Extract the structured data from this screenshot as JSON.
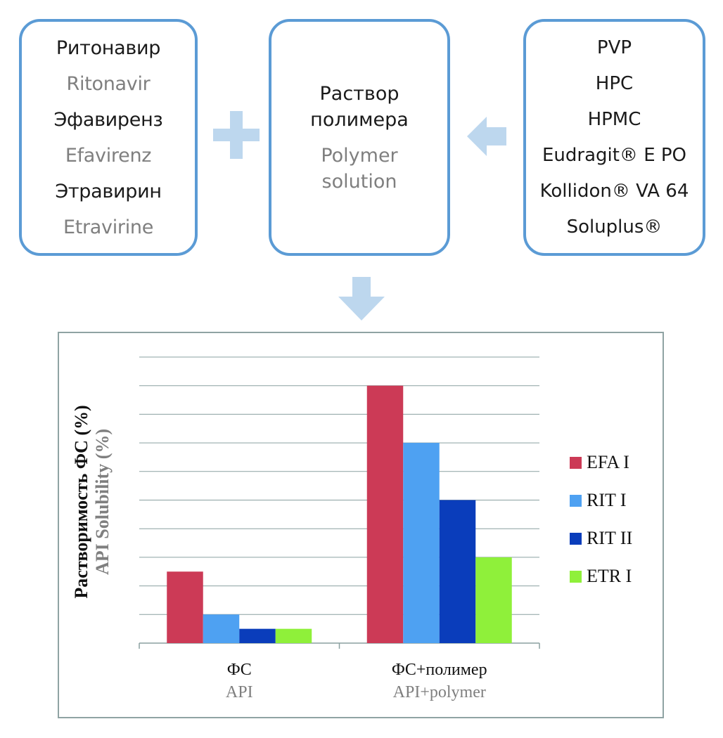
{
  "left_box": {
    "items": [
      {
        "ru": "Ритонавир",
        "en": "Ritonavir"
      },
      {
        "ru": "Эфавиренз",
        "en": "Efavirenz"
      },
      {
        "ru": "Этравирин",
        "en": "Etravirine"
      }
    ]
  },
  "middle_box": {
    "ru_line1": "Раствор",
    "ru_line2": "полимера",
    "en_line1": "Polymer",
    "en_line2": "solution"
  },
  "right_box": {
    "items": [
      "PVP",
      "HPC",
      "HPMC",
      "Eudragit® E PO",
      "Kollidon® VA 64",
      "Soluplus®"
    ]
  },
  "colors": {
    "box_border": "#5b9bd5",
    "connector_fill": "#bdd7ee",
    "efa": "#cc3a56",
    "rit1": "#4ea1f2",
    "rit2": "#0a3dbb",
    "etr": "#8ff03a"
  },
  "chart_data": {
    "type": "bar",
    "ylabel_ru": "Растворимость ФС (%)",
    "ylabel_en": "API Solubility (%)",
    "categories": [
      {
        "ru": "ФС",
        "en": "API"
      },
      {
        "ru": "ФС+полимер",
        "en": "API+polymer"
      }
    ],
    "ylim": [
      0,
      10
    ],
    "grid": true,
    "legend_position": "right",
    "series": [
      {
        "name": "EFA I",
        "color": "#cc3a56",
        "values": [
          2.5,
          9
        ]
      },
      {
        "name": "RIT I",
        "color": "#4ea1f2",
        "values": [
          1,
          7
        ]
      },
      {
        "name": "RIT II",
        "color": "#0a3dbb",
        "values": [
          0.5,
          5
        ]
      },
      {
        "name": "ETR I",
        "color": "#8ff03a",
        "values": [
          0.5,
          3
        ]
      }
    ]
  }
}
